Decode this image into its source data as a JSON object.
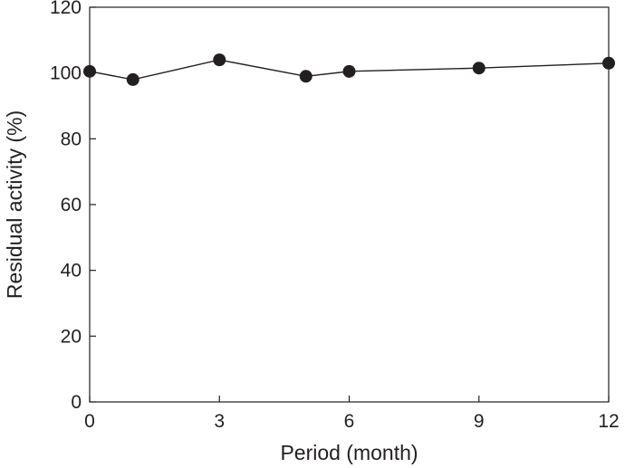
{
  "chart_data": {
    "type": "line",
    "title": "",
    "xlabel": "Period (month)",
    "ylabel": "Residual activity (%)",
    "xlim": [
      0,
      12
    ],
    "ylim": [
      0,
      120
    ],
    "xticks": [
      0,
      3,
      6,
      9,
      12
    ],
    "yticks": [
      0,
      20,
      40,
      60,
      80,
      100,
      120
    ],
    "grid": false,
    "legend": "none",
    "series": [
      {
        "x": [
          0,
          1,
          3,
          5,
          6,
          9,
          12
        ],
        "y": [
          100.5,
          98,
          104,
          99,
          100.5,
          101.5,
          103
        ],
        "color": "#231f20",
        "marker": "circle"
      }
    ]
  }
}
